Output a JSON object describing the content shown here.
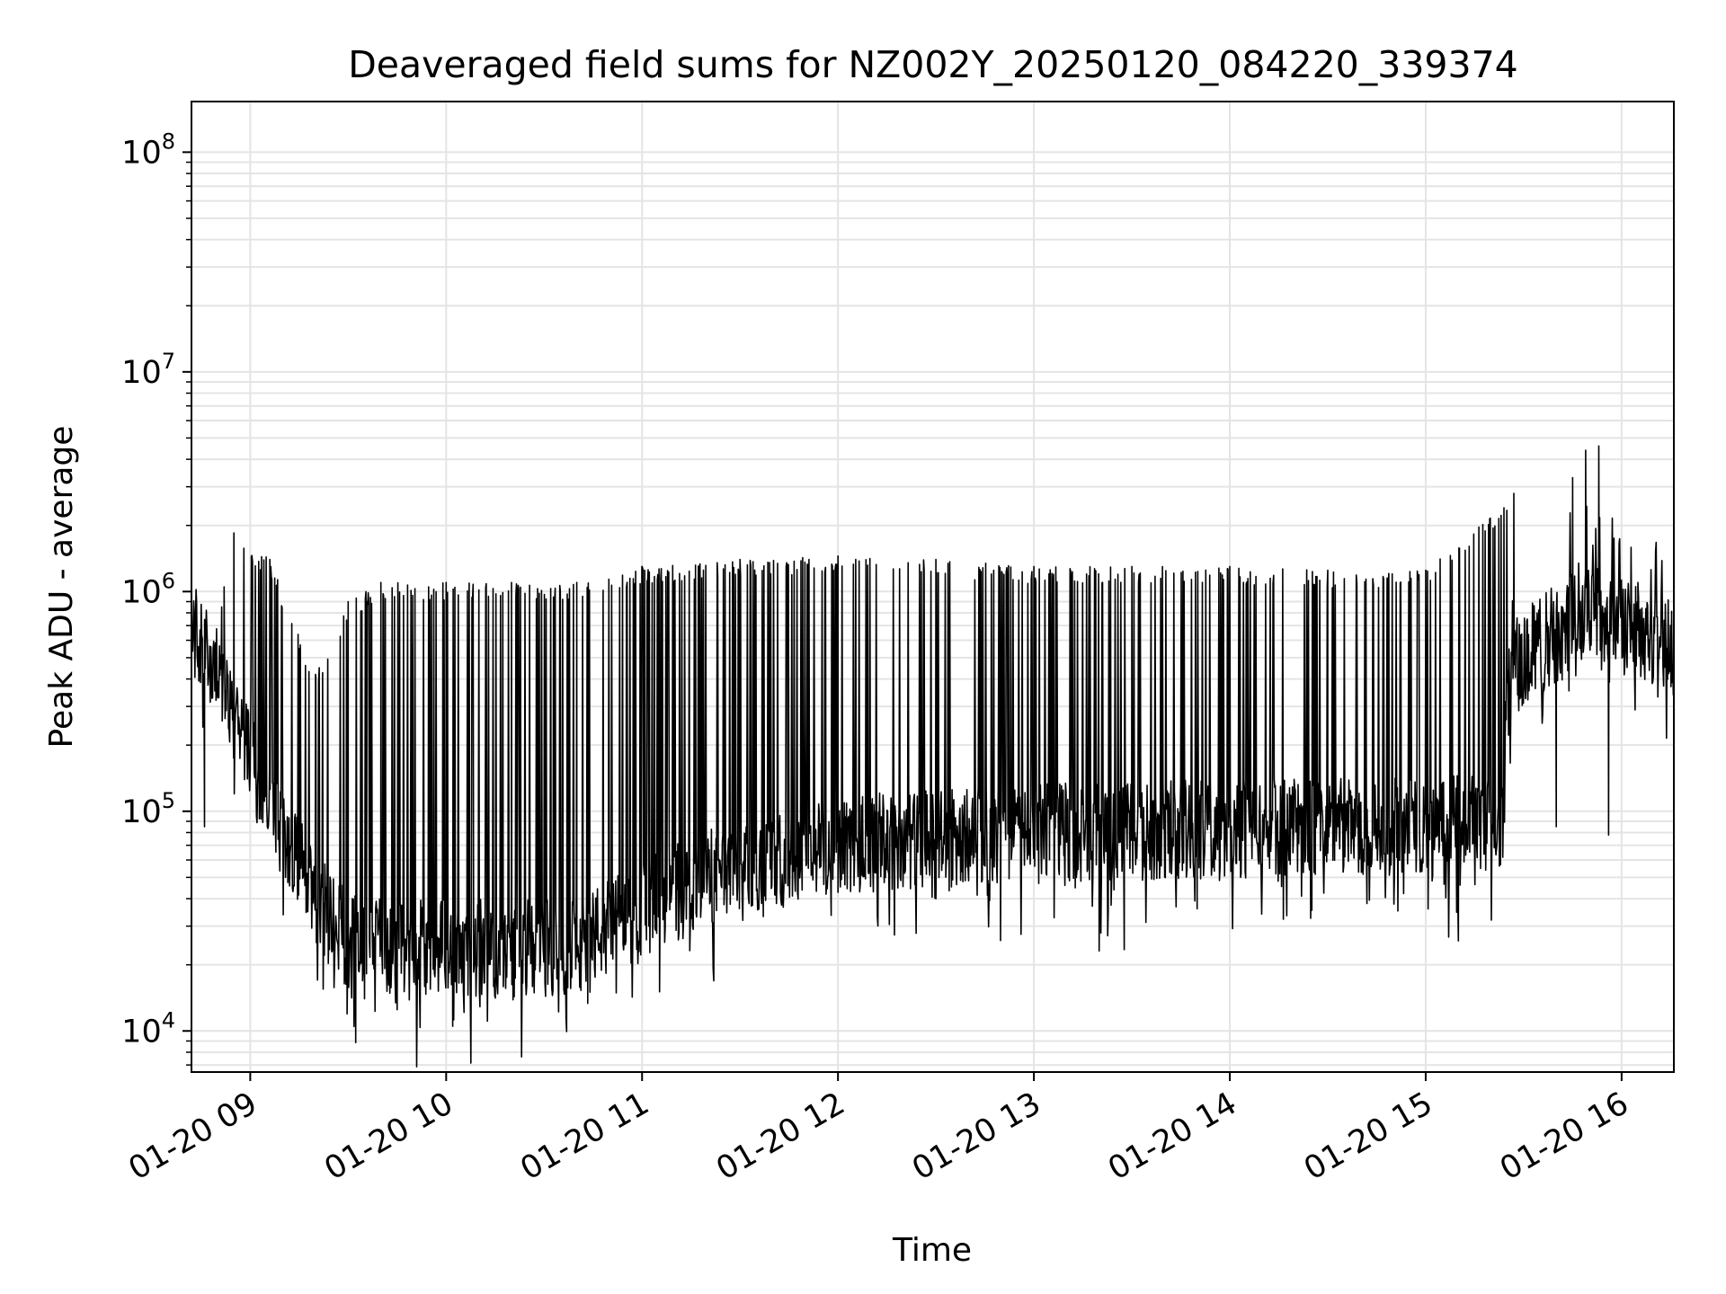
{
  "chart_data": {
    "type": "line",
    "title": "Deaveraged field sums for NZ002Y_20250120_084220_339374",
    "xlabel": "Time",
    "ylabel": "Peak ADU - average",
    "x_range": [
      "2025-01-20 08:42",
      "2025-01-20 16:16"
    ],
    "ylim": [
      6500,
      170000000
    ],
    "y_scale": "log",
    "grid": true,
    "x_ticks": [
      {
        "t": "2025-01-20 09:00",
        "label": "01-20 09"
      },
      {
        "t": "2025-01-20 10:00",
        "label": "01-20 10"
      },
      {
        "t": "2025-01-20 11:00",
        "label": "01-20 11"
      },
      {
        "t": "2025-01-20 12:00",
        "label": "01-20 12"
      },
      {
        "t": "2025-01-20 13:00",
        "label": "01-20 13"
      },
      {
        "t": "2025-01-20 14:00",
        "label": "01-20 14"
      },
      {
        "t": "2025-01-20 15:00",
        "label": "01-20 15"
      },
      {
        "t": "2025-01-20 16:00",
        "label": "01-20 16"
      }
    ],
    "y_ticks": [
      {
        "value": 10000,
        "base": "10",
        "exp": "4"
      },
      {
        "value": 100000,
        "base": "10",
        "exp": "5"
      },
      {
        "value": 1000000,
        "base": "10",
        "exp": "6"
      },
      {
        "value": 10000000,
        "base": "10",
        "exp": "7"
      },
      {
        "value": 100000000,
        "base": "10",
        "exp": "8"
      }
    ],
    "series": [
      {
        "color": "#000000",
        "baseline": [
          {
            "t": "2025-01-20 08:42",
            "y": 700000
          },
          {
            "t": "2025-01-20 08:50",
            "y": 400000
          },
          {
            "t": "2025-01-20 09:00",
            "y": 200000
          },
          {
            "t": "2025-01-20 09:10",
            "y": 80000
          },
          {
            "t": "2025-01-20 09:20",
            "y": 40000
          },
          {
            "t": "2025-01-20 09:30",
            "y": 26000
          },
          {
            "t": "2025-01-20 09:45",
            "y": 24000
          },
          {
            "t": "2025-01-20 10:00",
            "y": 25000
          },
          {
            "t": "2025-01-20 10:20",
            "y": 23000
          },
          {
            "t": "2025-01-20 10:40",
            "y": 25000
          },
          {
            "t": "2025-01-20 10:55",
            "y": 32000
          },
          {
            "t": "2025-01-20 11:10",
            "y": 45000
          },
          {
            "t": "2025-01-20 11:30",
            "y": 55000
          },
          {
            "t": "2025-01-20 12:00",
            "y": 70000
          },
          {
            "t": "2025-01-20 12:30",
            "y": 75000
          },
          {
            "t": "2025-01-20 13:00",
            "y": 80000
          },
          {
            "t": "2025-01-20 13:30",
            "y": 80000
          },
          {
            "t": "2025-01-20 14:00",
            "y": 85000
          },
          {
            "t": "2025-01-20 14:30",
            "y": 85000
          },
          {
            "t": "2025-01-20 15:00",
            "y": 85000
          },
          {
            "t": "2025-01-20 15:24",
            "y": 90000
          },
          {
            "t": "2025-01-20 15:25",
            "y": 450000
          },
          {
            "t": "2025-01-20 15:40",
            "y": 650000
          },
          {
            "t": "2025-01-20 15:50",
            "y": 900000
          },
          {
            "t": "2025-01-20 16:00",
            "y": 700000
          },
          {
            "t": "2025-01-20 16:16",
            "y": 600000
          }
        ],
        "spike_peaks": [
          {
            "t": "2025-01-20 08:52",
            "y": 1050000
          },
          {
            "t": "2025-01-20 08:55",
            "y": 1850000
          },
          {
            "t": "2025-01-20 09:06",
            "y": 1400000
          },
          {
            "t": "2025-01-20 09:20",
            "y": 420000
          },
          {
            "t": "2025-01-20 09:30",
            "y": 900000
          },
          {
            "t": "2025-01-20 09:40",
            "y": 1100000
          },
          {
            "t": "2025-01-20 10:00",
            "y": 1100000
          },
          {
            "t": "2025-01-20 10:20",
            "y": 1100000
          },
          {
            "t": "2025-01-20 10:40",
            "y": 1100000
          },
          {
            "t": "2025-01-20 11:00",
            "y": 1300000
          },
          {
            "t": "2025-01-20 11:30",
            "y": 1400000
          },
          {
            "t": "2025-01-20 12:00",
            "y": 1450000
          },
          {
            "t": "2025-01-20 12:30",
            "y": 1400000
          },
          {
            "t": "2025-01-20 13:00",
            "y": 1300000
          },
          {
            "t": "2025-01-20 13:30",
            "y": 1300000
          },
          {
            "t": "2025-01-20 14:00",
            "y": 1300000
          },
          {
            "t": "2025-01-20 14:30",
            "y": 1250000
          },
          {
            "t": "2025-01-20 15:00",
            "y": 1250000
          },
          {
            "t": "2025-01-20 15:27",
            "y": 2800000
          },
          {
            "t": "2025-01-20 15:45",
            "y": 3300000
          },
          {
            "t": "2025-01-20 15:49",
            "y": 4400000
          },
          {
            "t": "2025-01-20 15:53",
            "y": 4600000
          },
          {
            "t": "2025-01-20 16:05",
            "y": 1100000
          }
        ],
        "dips": [
          {
            "t": "2025-01-20 08:46",
            "y": 85000
          },
          {
            "t": "2025-01-20 09:35",
            "y": 14000
          },
          {
            "t": "2025-01-20 09:45",
            "y": 12500
          },
          {
            "t": "2025-01-20 10:02",
            "y": 10500
          },
          {
            "t": "2025-01-20 10:15",
            "y": 15000
          },
          {
            "t": "2025-01-20 12:30",
            "y": 40000
          },
          {
            "t": "2025-01-20 13:50",
            "y": 36000
          },
          {
            "t": "2025-01-20 14:42",
            "y": 38000
          },
          {
            "t": "2025-01-20 15:40",
            "y": 85000
          },
          {
            "t": "2025-01-20 15:56",
            "y": 78000
          }
        ]
      }
    ]
  }
}
